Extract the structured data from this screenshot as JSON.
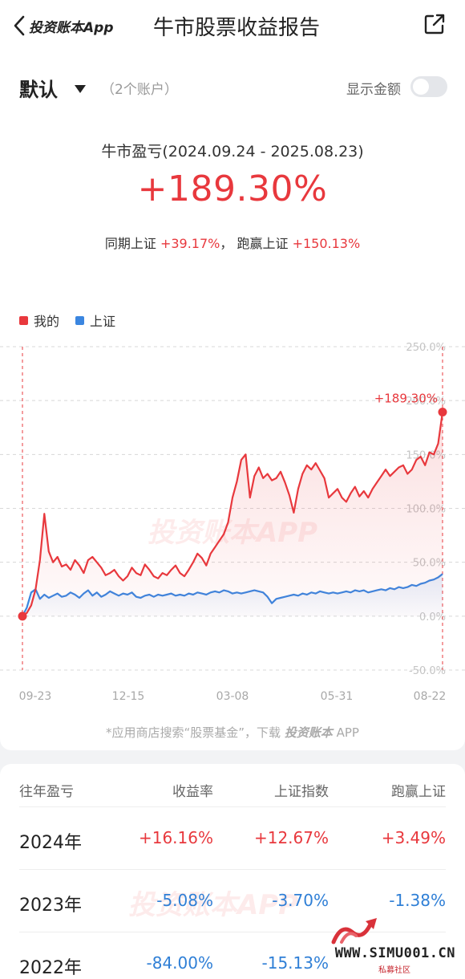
{
  "header": {
    "brand": "投资账本App",
    "title": "牛市股票收益报告"
  },
  "account": {
    "name": "默认",
    "count": "（2个账户）",
    "show_amount_label": "显示金额",
    "show_amount_on": false
  },
  "summary": {
    "period_label": "牛市盈亏(2024.09.24 - 2025.08.23)",
    "return": "+189.30%",
    "same_period_label": "同期上证",
    "same_period_value": "+39.17%",
    "sep": "，",
    "beat_label": "跑赢上证",
    "beat_value": "+150.13%"
  },
  "legend": {
    "mine": "我的",
    "index": "上证"
  },
  "colors": {
    "mine": "#e8383d",
    "index": "#3b86e0",
    "positive": "#e8383d",
    "negative": "#2f7fd6"
  },
  "chart_data": {
    "type": "line",
    "ylim": [
      -50,
      250
    ],
    "y_ticks": [
      "250.0%",
      "200.0%",
      "150.0%",
      "100.0%",
      "50.0%",
      "0.0%",
      "-50.0%"
    ],
    "y_tick_values": [
      250,
      200,
      150,
      100,
      50,
      0,
      -50
    ],
    "x_tick_labels": [
      "09-23",
      "12-15",
      "03-08",
      "05-31",
      "08-22"
    ],
    "end_label": "+189.30%",
    "watermark": "投资账本APP",
    "series": [
      {
        "name": "我的",
        "values": [
          0,
          3,
          10,
          25,
          52,
          95,
          60,
          50,
          55,
          46,
          48,
          43,
          52,
          47,
          40,
          52,
          55,
          50,
          45,
          38,
          40,
          43,
          37,
          33,
          37,
          45,
          40,
          38,
          48,
          43,
          37,
          35,
          40,
          38,
          43,
          47,
          40,
          37,
          43,
          50,
          58,
          54,
          47,
          58,
          64,
          70,
          76,
          87,
          110,
          125,
          145,
          150,
          110,
          130,
          138,
          128,
          132,
          126,
          128,
          134,
          124,
          112,
          96,
          118,
          132,
          140,
          136,
          142,
          135,
          128,
          110,
          114,
          118,
          110,
          106,
          114,
          120,
          111,
          116,
          110,
          118,
          124,
          130,
          136,
          130,
          134,
          138,
          140,
          132,
          136,
          145,
          148,
          140,
          152,
          150,
          160,
          189.3
        ]
      },
      {
        "name": "上证",
        "values": [
          0,
          8,
          22,
          25,
          16,
          20,
          17,
          19,
          21,
          18,
          19,
          22,
          20,
          17,
          21,
          24,
          19,
          22,
          18,
          20,
          23,
          21,
          19,
          21,
          20,
          22,
          18,
          17,
          19,
          20,
          18,
          20,
          19,
          20,
          21,
          19,
          20,
          19,
          21,
          20,
          22,
          21,
          20,
          22,
          23,
          22,
          24,
          23,
          21,
          22,
          21,
          22,
          23,
          24,
          23,
          22,
          18,
          12,
          16,
          17,
          18,
          19,
          20,
          19,
          21,
          20,
          22,
          21,
          23,
          22,
          21,
          22,
          21,
          22,
          23,
          22,
          24,
          23,
          24,
          22,
          23,
          24,
          25,
          24,
          26,
          25,
          27,
          26,
          27,
          29,
          28,
          30,
          31,
          33,
          34,
          36,
          39.17
        ]
      }
    ]
  },
  "footnote": {
    "prefix": "*应用商店搜索“股票基金”，下载",
    "brand": "投资账本",
    "suffix": " APP"
  },
  "table": {
    "headers": [
      "往年盈亏",
      "收益率",
      "上证指数",
      "跑赢上证"
    ],
    "rows": [
      {
        "year": "2024年",
        "rate": "+16.16%",
        "index": "+12.67%",
        "beat": "+3.49%",
        "rate_sign": "pos",
        "index_sign": "pos",
        "beat_sign": "pos"
      },
      {
        "year": "2023年",
        "rate": "-5.08%",
        "index": "-3.70%",
        "beat": "-1.38%",
        "rate_sign": "neg",
        "index_sign": "neg",
        "beat_sign": "neg"
      },
      {
        "year": "2022年",
        "rate": "-84.00%",
        "index": "-15.13%",
        "beat": "",
        "rate_sign": "neg",
        "index_sign": "neg",
        "beat_sign": "neg"
      }
    ],
    "watermark": "投资账本APP"
  },
  "corner_watermark": {
    "text": "WWW.SIMU001.CN",
    "sub": "私募社区"
  }
}
